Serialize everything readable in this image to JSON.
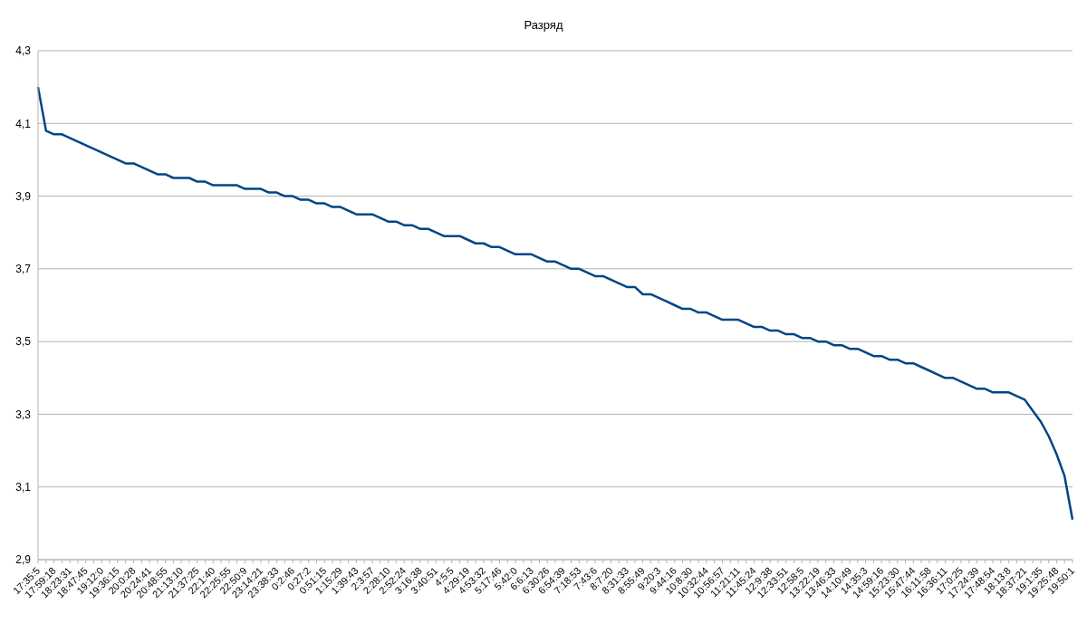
{
  "chart_data": {
    "type": "line",
    "title": "Разряд",
    "categories": [
      "17:35:5",
      null,
      "17:59:18",
      null,
      "18:23:31",
      null,
      "18:47:45",
      null,
      "19:12:0",
      null,
      "19:36:15",
      null,
      "20:0:28",
      null,
      "20:24:41",
      null,
      "20:48:55",
      null,
      "21:13:10",
      null,
      "21:37:25",
      null,
      "22:1:40",
      null,
      "22:25:55",
      null,
      "22:50:9",
      null,
      "23:14:21",
      null,
      "23:38:33",
      null,
      "0:2:46",
      null,
      "0:27:2",
      null,
      "0:51:15",
      null,
      "1:15:29",
      null,
      "1:39:43",
      null,
      "2:3:57",
      null,
      "2:28:10",
      null,
      "2:52:24",
      null,
      "3:16:38",
      null,
      "3:40:51",
      null,
      "4:5:5",
      null,
      "4:29:19",
      null,
      "4:53:32",
      null,
      "5:17:46",
      null,
      "5:42:0",
      null,
      "6:6:13",
      null,
      "6:30:26",
      null,
      "6:54:39",
      null,
      "7:18:53",
      null,
      "7:43:6",
      null,
      "8:7:20",
      null,
      "8:31:33",
      null,
      "8:55:49",
      null,
      "9:20:3",
      null,
      "9:44:16",
      null,
      "10:8:30",
      null,
      "10:32:44",
      null,
      "10:56:57",
      null,
      "11:21:11",
      null,
      "11:45:24",
      null,
      "12:9:38",
      null,
      "12:33:51",
      null,
      "12:58:5",
      null,
      "13:22:19",
      null,
      "13:46:33",
      null,
      "14:10:49",
      null,
      "14:35:3",
      null,
      "14:59:16",
      null,
      "15:23:30",
      null,
      "15:47:44",
      null,
      "16:11:58",
      null,
      "16:36:11",
      null,
      "17:0:25",
      null,
      "17:24:39",
      null,
      "17:48:54",
      null,
      "18:13:8",
      null,
      "18:37:21",
      null,
      "19:1:35",
      null,
      "19:25:48",
      null,
      "19:50:1"
    ],
    "series": [
      {
        "color": "#004586",
        "values": [
          4.2,
          4.08,
          4.07,
          4.07,
          4.06,
          4.05,
          4.04,
          4.03,
          4.02,
          4.01,
          4.0,
          3.99,
          3.99,
          3.98,
          3.97,
          3.96,
          3.96,
          3.95,
          3.95,
          3.95,
          3.94,
          3.94,
          3.93,
          3.93,
          3.93,
          3.93,
          3.92,
          3.92,
          3.92,
          3.91,
          3.91,
          3.9,
          3.9,
          3.89,
          3.89,
          3.88,
          3.88,
          3.87,
          3.87,
          3.86,
          3.85,
          3.85,
          3.85,
          3.84,
          3.83,
          3.83,
          3.82,
          3.82,
          3.81,
          3.81,
          3.8,
          3.79,
          3.79,
          3.79,
          3.78,
          3.77,
          3.77,
          3.76,
          3.76,
          3.75,
          3.74,
          3.74,
          3.74,
          3.73,
          3.72,
          3.72,
          3.71,
          3.7,
          3.7,
          3.69,
          3.68,
          3.68,
          3.67,
          3.66,
          3.65,
          3.65,
          3.63,
          3.63,
          3.62,
          3.61,
          3.6,
          3.59,
          3.59,
          3.58,
          3.58,
          3.57,
          3.56,
          3.56,
          3.56,
          3.55,
          3.54,
          3.54,
          3.53,
          3.53,
          3.52,
          3.52,
          3.51,
          3.51,
          3.5,
          3.5,
          3.49,
          3.49,
          3.48,
          3.48,
          3.47,
          3.46,
          3.46,
          3.45,
          3.45,
          3.44,
          3.44,
          3.43,
          3.42,
          3.41,
          3.4,
          3.4,
          3.39,
          3.38,
          3.37,
          3.37,
          3.36,
          3.36,
          3.36,
          3.35,
          3.34,
          3.31,
          3.28,
          3.24,
          3.19,
          3.13,
          3.01
        ]
      }
    ],
    "ylim": [
      2.9,
      4.3
    ],
    "yticks": [
      {
        "value": 2.9,
        "label": "2,9"
      },
      {
        "value": 3.1,
        "label": "3,1"
      },
      {
        "value": 3.3,
        "label": "3,3"
      },
      {
        "value": 3.5,
        "label": "3,5"
      },
      {
        "value": 3.7,
        "label": "3,7"
      },
      {
        "value": 3.9,
        "label": "3,9"
      },
      {
        "value": 4.1,
        "label": "4,1"
      },
      {
        "value": 4.3,
        "label": "4,3"
      }
    ],
    "grid": "y",
    "legend": false,
    "marker": "none",
    "line_style": "solid"
  }
}
